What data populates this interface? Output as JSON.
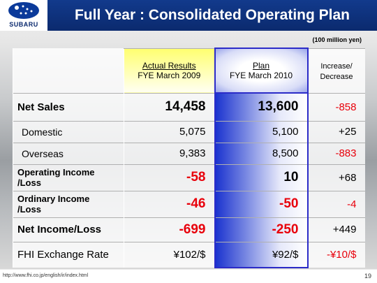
{
  "header": {
    "logo": "SUBARU",
    "title": "Full Year : Consolidated Operating Plan"
  },
  "unit": "(100 million yen)",
  "table": {
    "columns": [
      {
        "title": "Actual Results",
        "subtitle": "FYE March 2009"
      },
      {
        "title": "Plan",
        "subtitle": "FYE March 2010"
      },
      {
        "title": "Increase/",
        "subtitle": "Decrease"
      }
    ],
    "rows": [
      [
        "Net Sales",
        "14,458",
        "13,600",
        "-858"
      ],
      [
        "Domestic",
        "5,075",
        "5,100",
        "+25"
      ],
      [
        "Overseas",
        "9,383",
        "8,500",
        "-883"
      ],
      [
        "Operating Income /Loss",
        "-58",
        "10",
        "+68"
      ],
      [
        "Ordinary Income /Loss",
        "-46",
        "-50",
        "-4"
      ],
      [
        "Net Income/Loss",
        "-699",
        "-250",
        "+449"
      ],
      [
        "FHI Exchange Rate",
        "¥102/$",
        "¥92/$",
        "-¥10/$"
      ]
    ]
  },
  "footer": {
    "url": "http://www.fhi.co.jp/english/ir/index.html",
    "page": "19"
  }
}
